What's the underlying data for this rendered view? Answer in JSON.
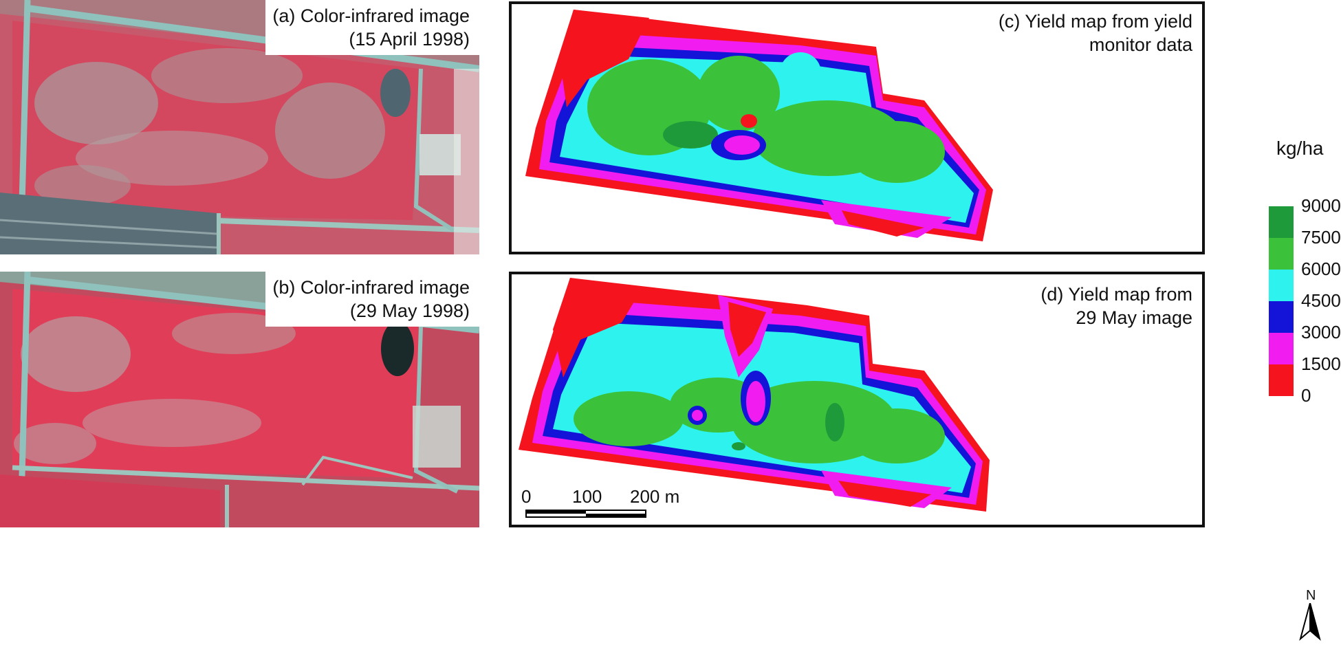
{
  "panels": {
    "a": {
      "label_letter": "(a)",
      "label_title": "Color-infrared image",
      "label_date": "(15 April 1998)"
    },
    "b": {
      "label_letter": "(b)",
      "label_title": "Color-infrared image",
      "label_date": "(29 May 1998)"
    },
    "c": {
      "label_line1": "(c) Yield map from yield",
      "label_line2": "monitor data"
    },
    "d": {
      "label_line1": "(d) Yield map from",
      "label_line2": "29 May image"
    }
  },
  "legend": {
    "title": "kg/ha",
    "classes": [
      {
        "min": 7500,
        "max": 9000,
        "color": "#1f9a3a"
      },
      {
        "min": 6000,
        "max": 7500,
        "color": "#3cc13a"
      },
      {
        "min": 4500,
        "max": 6000,
        "color": "#2ef2ee"
      },
      {
        "min": 3000,
        "max": 4500,
        "color": "#1414d8"
      },
      {
        "min": 1500,
        "max": 3000,
        "color": "#f01cf0"
      },
      {
        "min": 0,
        "max": 1500,
        "color": "#f5141e"
      }
    ],
    "ticks": [
      "9000",
      "7500",
      "6000",
      "4500",
      "3000",
      "1500",
      "0"
    ]
  },
  "scale_bar": {
    "ticks": [
      "0",
      "100",
      "200 m"
    ]
  },
  "north_arrow": {
    "label": "N"
  },
  "colors": {
    "cir_red": "#d9405a",
    "cir_gray": "#9aa3a0",
    "road": "#7fb5b0"
  }
}
